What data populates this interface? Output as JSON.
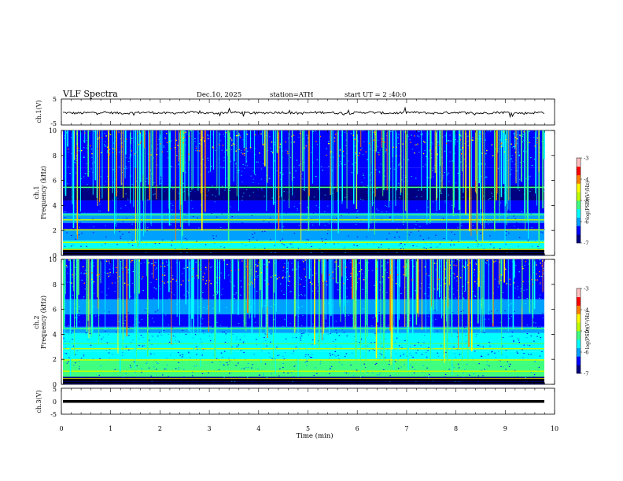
{
  "header": {
    "title": "VLF Spectra",
    "date": "Dec.10, 2025",
    "station": "station=ATH",
    "start_ut": "start UT =  2 :40:0"
  },
  "chart_data": [
    {
      "type": "line",
      "panel": "ch1-waveform",
      "ylabel": "ch.1(V)",
      "ylim": [
        -5,
        5
      ],
      "yticks": [
        "5",
        "-5"
      ],
      "xlim": [
        0,
        9.83
      ],
      "series": [
        {
          "values_description_baseline_volts": -0.3
        }
      ]
    },
    {
      "type": "heatmap",
      "panel": "ch1-spectrogram",
      "ylabel": "ch.1\nFrequency (kHz)",
      "ylim": [
        0,
        10
      ],
      "yticks": [
        "0",
        "2",
        "4",
        "6",
        "8",
        "10"
      ],
      "xlim": [
        0,
        9.83
      ],
      "colorbar": {
        "label": "log(PSD)(V²/Hz)",
        "range": [
          -7,
          -3
        ],
        "ticks": [
          "-3",
          "-4",
          "-5",
          "-6",
          "-7"
        ]
      },
      "bands_khz": [
        0.5,
        1.1,
        2.1,
        2.9,
        3.3,
        5.5
      ]
    },
    {
      "type": "heatmap",
      "panel": "ch2-spectrogram",
      "ylabel": "ch.2\nFrequency (kHz)",
      "ylim": [
        0,
        10
      ],
      "yticks": [
        "0",
        "2",
        "4",
        "6",
        "8",
        "10"
      ],
      "xlim": [
        0,
        9.83
      ],
      "colorbar": {
        "label": "log(PSD)(V²/Hz)",
        "range": [
          -7,
          -3
        ],
        "ticks": [
          "-3",
          "-4",
          "-5",
          "-6",
          "-7"
        ]
      },
      "bands_khz": [
        0.5,
        1.1,
        2.0,
        2.9,
        3.3,
        4.5
      ]
    },
    {
      "type": "line",
      "panel": "ch3-waveform",
      "ylabel": "ch.3(V)",
      "ylim": [
        -5,
        5
      ],
      "yticks": [
        "5",
        "0",
        "-5"
      ],
      "xlim": [
        0,
        9.83
      ],
      "series": [
        {
          "constant_volts": -1.3
        }
      ]
    }
  ],
  "xaxis": {
    "label": "Time (min)",
    "range": [
      0,
      10
    ],
    "ticks": [
      "0",
      "1",
      "2",
      "3",
      "4",
      "5",
      "6",
      "7",
      "8",
      "9",
      "10"
    ]
  },
  "colors": {
    "cmap": [
      "#000080",
      "#0000ff",
      "#00a0ff",
      "#00ffff",
      "#40ff80",
      "#c0ff00",
      "#ffff00",
      "#ff8000",
      "#ff0000",
      "#ffc0c0"
    ]
  }
}
